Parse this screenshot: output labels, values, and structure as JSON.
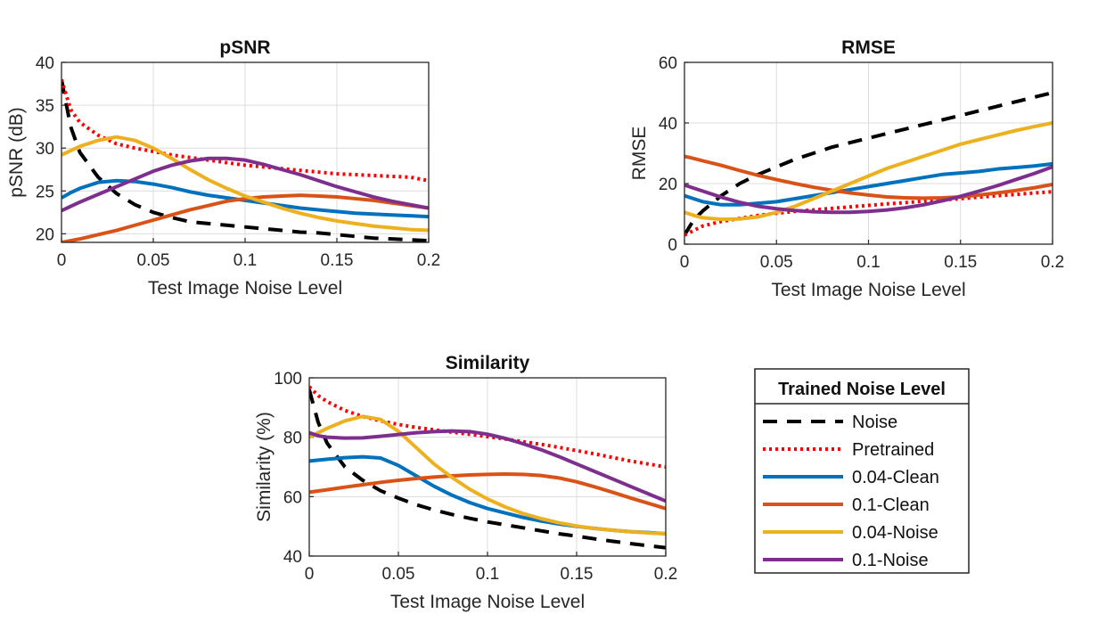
{
  "legend": {
    "title": "Trained Noise Level",
    "entries": [
      "Noise",
      "Pretrained",
      "0.04-Clean",
      "0.1-Clean",
      "0.04-Noise",
      "0.1-Noise"
    ]
  },
  "series_styles": {
    "Noise": {
      "color": "#000000",
      "dash": "dashed"
    },
    "Pretrained": {
      "color": "#ff0000",
      "dash": "dotted"
    },
    "0.04-Clean": {
      "color": "#0072bd",
      "dash": "solid"
    },
    "0.1-Clean": {
      "color": "#d95319",
      "dash": "solid"
    },
    "0.04-Noise": {
      "color": "#edb120",
      "dash": "solid"
    },
    "0.1-Noise": {
      "color": "#7e2f8e",
      "dash": "solid"
    }
  },
  "chart_data": [
    {
      "type": "line",
      "title": "pSNR",
      "xlabel": "Test Image Noise Level",
      "ylabel": "pSNR (dB)",
      "xlim": [
        0,
        0.2
      ],
      "ylim": [
        19,
        40
      ],
      "xticks": [
        "0",
        "0.05",
        "0.1",
        "0.15",
        "0.2"
      ],
      "yticks": [
        "20",
        "25",
        "30",
        "35",
        "40"
      ],
      "grid": true,
      "x": [
        0,
        0.005,
        0.01,
        0.02,
        0.03,
        0.04,
        0.05,
        0.06,
        0.07,
        0.08,
        0.09,
        0.1,
        0.11,
        0.12,
        0.13,
        0.14,
        0.15,
        0.16,
        0.17,
        0.18,
        0.19,
        0.2
      ],
      "series": [
        {
          "name": "Noise",
          "values": [
            38,
            32.5,
            29.5,
            26.6,
            24.7,
            23.4,
            22.5,
            21.9,
            21.4,
            21.2,
            21.0,
            20.8,
            20.6,
            20.4,
            20.2,
            20.1,
            19.9,
            19.7,
            19.5,
            19.4,
            19.3,
            19.2
          ]
        },
        {
          "name": "Pretrained",
          "values": [
            38,
            34.5,
            33.0,
            31.5,
            30.5,
            30.0,
            29.6,
            29.2,
            28.9,
            28.6,
            28.3,
            28.0,
            27.8,
            27.6,
            27.4,
            27.2,
            27.0,
            26.9,
            26.8,
            26.7,
            26.6,
            26.2
          ]
        },
        {
          "name": "0.04-Clean",
          "values": [
            24.2,
            24.8,
            25.3,
            26.0,
            26.2,
            26.1,
            25.8,
            25.4,
            24.9,
            24.5,
            24.2,
            23.9,
            23.6,
            23.3,
            23.0,
            22.8,
            22.6,
            22.4,
            22.3,
            22.2,
            22.1,
            22.0
          ]
        },
        {
          "name": "0.1-Clean",
          "values": [
            19.0,
            19.2,
            19.4,
            19.9,
            20.4,
            21.0,
            21.6,
            22.2,
            22.8,
            23.3,
            23.8,
            24.1,
            24.3,
            24.4,
            24.5,
            24.4,
            24.3,
            24.1,
            23.9,
            23.6,
            23.3,
            23.0
          ]
        },
        {
          "name": "0.04-Noise",
          "values": [
            29.2,
            29.7,
            30.2,
            30.9,
            31.3,
            30.9,
            30.0,
            28.8,
            27.5,
            26.3,
            25.3,
            24.4,
            23.7,
            23.0,
            22.4,
            21.9,
            21.5,
            21.2,
            20.9,
            20.7,
            20.5,
            20.4
          ]
        },
        {
          "name": "0.1-Noise",
          "values": [
            22.7,
            23.2,
            23.7,
            24.6,
            25.5,
            26.4,
            27.3,
            28.0,
            28.5,
            28.8,
            28.8,
            28.6,
            28.1,
            27.5,
            26.9,
            26.2,
            25.5,
            24.9,
            24.3,
            23.8,
            23.4,
            23.0
          ]
        }
      ]
    },
    {
      "type": "line",
      "title": "RMSE",
      "xlabel": "Test Image Noise Level",
      "ylabel": "RMSE",
      "xlim": [
        0,
        0.2
      ],
      "ylim": [
        0,
        60
      ],
      "xticks": [
        "0",
        "0.05",
        "0.1",
        "0.15",
        "0.2"
      ],
      "yticks": [
        "0",
        "20",
        "40",
        "60"
      ],
      "grid": true,
      "x": [
        0,
        0.005,
        0.01,
        0.02,
        0.03,
        0.04,
        0.05,
        0.06,
        0.07,
        0.08,
        0.09,
        0.1,
        0.11,
        0.12,
        0.13,
        0.14,
        0.15,
        0.16,
        0.17,
        0.18,
        0.19,
        0.2
      ],
      "series": [
        {
          "name": "Noise",
          "values": [
            3,
            8,
            11,
            16,
            20,
            23,
            25.5,
            28,
            30,
            32,
            33.5,
            35,
            36.5,
            38,
            39.5,
            41,
            42.5,
            44,
            45.5,
            47,
            48.5,
            50
          ]
        },
        {
          "name": "Pretrained",
          "values": [
            3,
            4.5,
            6,
            7.5,
            8.5,
            9.5,
            10.2,
            10.8,
            11.3,
            11.8,
            12.3,
            12.8,
            13.3,
            13.7,
            14.2,
            14.6,
            15.0,
            15.5,
            16.0,
            16.4,
            16.9,
            17.3
          ]
        },
        {
          "name": "0.04-Clean",
          "values": [
            16,
            15,
            14,
            13,
            13,
            13.5,
            14,
            15,
            16,
            17,
            18,
            19,
            20,
            21,
            22,
            23,
            23.5,
            24,
            24.8,
            25.3,
            25.8,
            26.5
          ]
        },
        {
          "name": "0.1-Clean",
          "values": [
            29,
            28.3,
            27.5,
            26,
            24.3,
            22.7,
            21.3,
            20,
            18.8,
            17.8,
            16.9,
            16.2,
            15.6,
            15.3,
            15.2,
            15.3,
            15.6,
            16.2,
            16.9,
            17.7,
            18.6,
            19.7
          ]
        },
        {
          "name": "0.04-Noise",
          "values": [
            10.5,
            9.5,
            8.7,
            8.2,
            8.3,
            9,
            10.5,
            12.5,
            15,
            17.5,
            20,
            22.5,
            25,
            27,
            29,
            31,
            33,
            34.5,
            36,
            37.5,
            38.8,
            40
          ]
        },
        {
          "name": "0.1-Noise",
          "values": [
            19.5,
            18.5,
            17.5,
            15.5,
            13.8,
            12.5,
            11.7,
            11.1,
            10.7,
            10.5,
            10.5,
            10.8,
            11.3,
            12,
            13,
            14.3,
            15.8,
            17.5,
            19.3,
            21.3,
            23.3,
            25.5
          ]
        }
      ]
    },
    {
      "type": "line",
      "title": "Similarity",
      "xlabel": "Test Image Noise Level",
      "ylabel": "Similarity (%)",
      "xlim": [
        0,
        0.2
      ],
      "ylim": [
        40,
        100
      ],
      "xticks": [
        "0",
        "0.05",
        "0.1",
        "0.15",
        "0.2"
      ],
      "yticks": [
        "40",
        "60",
        "80",
        "100"
      ],
      "grid": true,
      "x": [
        0,
        0.005,
        0.01,
        0.02,
        0.03,
        0.04,
        0.05,
        0.06,
        0.07,
        0.08,
        0.09,
        0.1,
        0.11,
        0.12,
        0.13,
        0.14,
        0.15,
        0.16,
        0.17,
        0.18,
        0.19,
        0.2
      ],
      "series": [
        {
          "name": "Noise",
          "values": [
            96,
            85,
            78,
            70,
            65.5,
            62,
            59.5,
            57.3,
            55.5,
            54,
            52.7,
            51.5,
            50.5,
            49.5,
            48.5,
            47.5,
            46.7,
            45.8,
            45,
            44.2,
            43.5,
            42.8
          ]
        },
        {
          "name": "Pretrained",
          "values": [
            97,
            94,
            92,
            89,
            87,
            85.5,
            84.3,
            83.3,
            82.5,
            81.7,
            81,
            80.2,
            79.4,
            78.5,
            77.6,
            76.6,
            75.5,
            74.4,
            73.2,
            72,
            71,
            70
          ]
        },
        {
          "name": "0.04-Clean",
          "values": [
            72,
            72.3,
            72.6,
            73.1,
            73.4,
            73,
            70.5,
            67,
            63.5,
            60.5,
            58,
            56,
            54.5,
            53,
            51.8,
            50.8,
            50,
            49.3,
            48.7,
            48.2,
            47.9,
            47.5
          ]
        },
        {
          "name": "0.1-Clean",
          "values": [
            61.5,
            61.9,
            62.3,
            63.2,
            64,
            64.8,
            65.5,
            66.1,
            66.6,
            67,
            67.3,
            67.5,
            67.6,
            67.5,
            67.1,
            66.3,
            65,
            63.3,
            61.5,
            59.6,
            57.8,
            56
          ]
        },
        {
          "name": "0.04-Noise",
          "values": [
            80,
            81.5,
            83,
            85.5,
            87,
            86,
            82,
            76.5,
            71,
            66.5,
            62.5,
            59.2,
            56.5,
            54.3,
            52.6,
            51.2,
            50.1,
            49.3,
            48.7,
            48.2,
            47.8,
            47.5
          ]
        },
        {
          "name": "0.1-Noise",
          "values": [
            81.5,
            80.5,
            80,
            79.7,
            79.8,
            80.3,
            80.9,
            81.5,
            81.9,
            82.1,
            81.9,
            81,
            79.6,
            77.8,
            75.8,
            73.5,
            71,
            68.5,
            66,
            63.5,
            61,
            58.5
          ]
        }
      ]
    }
  ]
}
